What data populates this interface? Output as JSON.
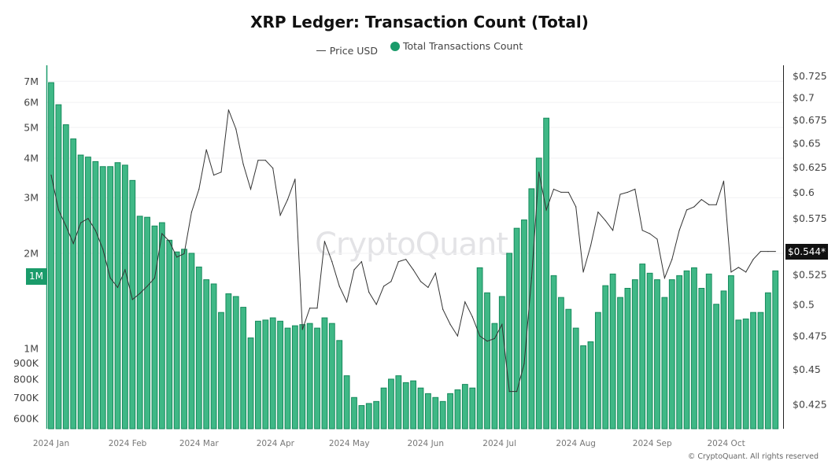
{
  "chart_data": {
    "type": "bar+line",
    "title": "XRP Ledger: Transaction Count (Total)",
    "legend": {
      "placement": "top-center",
      "items": [
        {
          "name": "Price USD",
          "marker": "line",
          "color": "#444444"
        },
        {
          "name": "Total Transactions Count",
          "marker": "dot",
          "color": "#1a9b6a"
        }
      ]
    },
    "x_tick_labels": [
      "2024 Jan",
      "2024 Feb",
      "2024 Mar",
      "2024 Apr",
      "2024 May",
      "2024 Jun",
      "2024 Jul",
      "2024 Aug",
      "2024 Sep",
      "2024 Oct"
    ],
    "x_tick_dates": [
      "2024-01-01",
      "2024-02-01",
      "2024-03-01",
      "2024-04-01",
      "2024-05-01",
      "2024-06-01",
      "2024-07-01",
      "2024-08-01",
      "2024-09-01",
      "2024-10-01"
    ],
    "left_axis": {
      "scale": "log",
      "unit": "transactions (millions)",
      "ticks": [
        {
          "label": "7M",
          "value": 7
        },
        {
          "label": "6M",
          "value": 6
        },
        {
          "label": "5M",
          "value": 5
        },
        {
          "label": "4M",
          "value": 4
        },
        {
          "label": "3M",
          "value": 3
        },
        {
          "label": "2M",
          "value": 2
        },
        {
          "label": "1M",
          "value": 1
        },
        {
          "label": "900K",
          "value": 0.9
        },
        {
          "label": "800K",
          "value": 0.8
        },
        {
          "label": "700K",
          "value": 0.7
        },
        {
          "label": "600K",
          "value": 0.6
        }
      ],
      "range": [
        0.557,
        7.87
      ],
      "grid": true,
      "current_badge": "1M"
    },
    "right_axis": {
      "scale": "log",
      "unit": "USD",
      "ticks": [
        {
          "label": "$0.725",
          "value": 0.725
        },
        {
          "label": "$0.7",
          "value": 0.7
        },
        {
          "label": "$0.675",
          "value": 0.675
        },
        {
          "label": "$0.65",
          "value": 0.65
        },
        {
          "label": "$0.625",
          "value": 0.625
        },
        {
          "label": "$0.6",
          "value": 0.6
        },
        {
          "label": "$0.575",
          "value": 0.575
        },
        {
          "label": "$0.525",
          "value": 0.525
        },
        {
          "label": "$0.5",
          "value": 0.5
        },
        {
          "label": "$0.475",
          "value": 0.475
        },
        {
          "label": "$0.45",
          "value": 0.45
        },
        {
          "label": "$0.425",
          "value": 0.425
        }
      ],
      "range": [
        0.408,
        0.737
      ],
      "current_badge": "$0.544*"
    },
    "x": [
      "2024-01-01",
      "2024-01-04",
      "2024-01-07",
      "2024-01-10",
      "2024-01-13",
      "2024-01-16",
      "2024-01-19",
      "2024-01-22",
      "2024-01-25",
      "2024-01-28",
      "2024-01-31",
      "2024-02-03",
      "2024-02-06",
      "2024-02-09",
      "2024-02-12",
      "2024-02-15",
      "2024-02-18",
      "2024-02-21",
      "2024-02-24",
      "2024-02-27",
      "2024-03-01",
      "2024-03-04",
      "2024-03-07",
      "2024-03-10",
      "2024-03-13",
      "2024-03-16",
      "2024-03-19",
      "2024-03-22",
      "2024-03-25",
      "2024-03-28",
      "2024-03-31",
      "2024-04-03",
      "2024-04-06",
      "2024-04-09",
      "2024-04-12",
      "2024-04-15",
      "2024-04-18",
      "2024-04-21",
      "2024-04-24",
      "2024-04-27",
      "2024-04-30",
      "2024-05-03",
      "2024-05-06",
      "2024-05-09",
      "2024-05-12",
      "2024-05-15",
      "2024-05-18",
      "2024-05-21",
      "2024-05-24",
      "2024-05-27",
      "2024-05-30",
      "2024-06-02",
      "2024-06-05",
      "2024-06-08",
      "2024-06-11",
      "2024-06-14",
      "2024-06-17",
      "2024-06-20",
      "2024-06-23",
      "2024-06-26",
      "2024-06-29",
      "2024-07-02",
      "2024-07-05",
      "2024-07-08",
      "2024-07-11",
      "2024-07-14",
      "2024-07-17",
      "2024-07-20",
      "2024-07-23",
      "2024-07-26",
      "2024-07-29",
      "2024-08-01",
      "2024-08-04",
      "2024-08-07",
      "2024-08-10",
      "2024-08-13",
      "2024-08-16",
      "2024-08-19",
      "2024-08-22",
      "2024-08-25",
      "2024-08-28",
      "2024-08-31",
      "2024-09-03",
      "2024-09-06",
      "2024-09-09",
      "2024-09-12",
      "2024-09-15",
      "2024-09-18",
      "2024-09-21",
      "2024-09-24",
      "2024-09-27",
      "2024-09-30",
      "2024-10-03",
      "2024-10-06",
      "2024-10-09",
      "2024-10-12",
      "2024-10-15",
      "2024-10-18",
      "2024-10-21"
    ],
    "series": [
      {
        "name": "Total Transactions Count",
        "type": "bar",
        "axis": "left",
        "unit": "millions",
        "color": "#1a9b6a",
        "values": [
          6.93,
          5.9,
          5.1,
          4.6,
          4.09,
          4.03,
          3.9,
          3.76,
          3.76,
          3.87,
          3.8,
          3.4,
          2.62,
          2.6,
          2.44,
          2.5,
          2.2,
          2.02,
          2.06,
          2.0,
          1.81,
          1.65,
          1.6,
          1.3,
          1.49,
          1.46,
          1.35,
          1.08,
          1.22,
          1.23,
          1.25,
          1.22,
          1.16,
          1.18,
          1.19,
          1.2,
          1.16,
          1.25,
          1.2,
          1.06,
          0.82,
          0.7,
          0.66,
          0.67,
          0.68,
          0.75,
          0.8,
          0.82,
          0.78,
          0.79,
          0.75,
          0.72,
          0.7,
          0.68,
          0.72,
          0.74,
          0.77,
          0.75,
          1.8,
          1.5,
          1.2,
          1.46,
          2.0,
          2.4,
          2.55,
          3.2,
          4.0,
          5.35,
          1.7,
          1.45,
          1.33,
          1.16,
          1.02,
          1.05,
          1.3,
          1.58,
          1.72,
          1.45,
          1.55,
          1.65,
          1.85,
          1.73,
          1.65,
          1.45,
          1.65,
          1.7,
          1.76,
          1.8,
          1.55,
          1.72,
          1.38,
          1.52,
          1.7,
          1.23,
          1.24,
          1.3,
          1.3,
          1.5,
          1.76
        ]
      },
      {
        "name": "Price USD",
        "type": "line",
        "axis": "right",
        "color": "#444444",
        "values": [
          0.617,
          0.583,
          0.568,
          0.552,
          0.571,
          0.575,
          0.564,
          0.547,
          0.522,
          0.514,
          0.529,
          0.504,
          0.509,
          0.515,
          0.522,
          0.561,
          0.554,
          0.54,
          0.543,
          0.581,
          0.603,
          0.643,
          0.617,
          0.62,
          0.686,
          0.665,
          0.628,
          0.603,
          0.632,
          0.632,
          0.624,
          0.578,
          0.593,
          0.613,
          0.48,
          0.497,
          0.497,
          0.554,
          0.536,
          0.515,
          0.502,
          0.529,
          0.536,
          0.51,
          0.5,
          0.515,
          0.519,
          0.536,
          0.538,
          0.529,
          0.519,
          0.514,
          0.526,
          0.496,
          0.484,
          0.475,
          0.502,
          0.49,
          0.475,
          0.471,
          0.473,
          0.484,
          0.434,
          0.434,
          0.454,
          0.522,
          0.62,
          0.583,
          0.603,
          0.6,
          0.6,
          0.586,
          0.527,
          0.55,
          0.581,
          0.573,
          0.564,
          0.598,
          0.6,
          0.603,
          0.564,
          0.561,
          0.556,
          0.522,
          0.538,
          0.564,
          0.583,
          0.586,
          0.593,
          0.588,
          0.588,
          0.611,
          0.527,
          0.531,
          0.527,
          0.538,
          0.545,
          0.545,
          0.545
        ]
      }
    ]
  },
  "watermark": "CryptoQuant",
  "copyright": "© CryptoQuant. All rights reserved"
}
